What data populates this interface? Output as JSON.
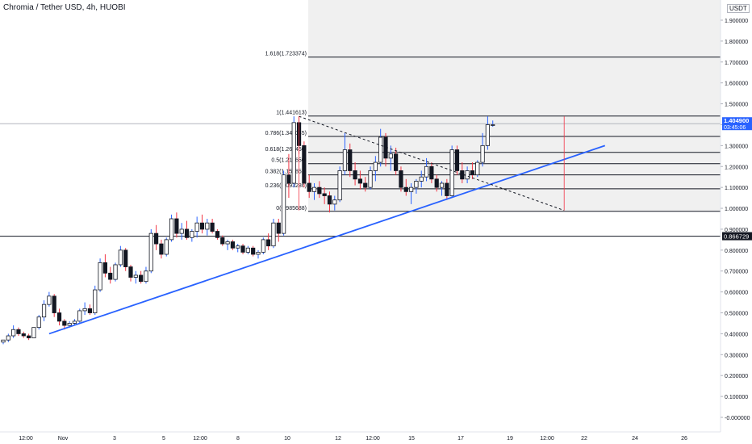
{
  "header": {
    "title": "Chromia / Tether USD, 4h, HUOBI",
    "currency": "USDT"
  },
  "price_label": {
    "value": "1.404900",
    "countdown": "03:45:06"
  },
  "level_label": "0.866729",
  "colors": {
    "up": "#ffffff",
    "down": "#131722",
    "wick_up": "#2962ff",
    "wick_down": "#f23645",
    "trendline": "#2962ff",
    "fib": "#131722",
    "price_tag_bg": "#2962ff"
  },
  "chart_data": {
    "type": "candlestick",
    "title": "Chromia / Tether USD, 4h, HUOBI",
    "y_axis_labels": [
      "-0.000000",
      "0.100000",
      "0.200000",
      "0.300000",
      "0.400000",
      "0.500000",
      "0.600000",
      "0.700000",
      "0.800000",
      "0.900000",
      "1.000000",
      "1.100000",
      "1.200000",
      "1.300000",
      "1.400000",
      "1.500000",
      "1.600000",
      "1.700000",
      "1.800000",
      "1.900000"
    ],
    "x_axis_labels": [
      "12:00",
      "Nov",
      "3",
      "5",
      "12:00",
      "8",
      "10",
      "12",
      "12:00",
      "15",
      "17",
      "19",
      "12:00",
      "22",
      "24",
      "26"
    ],
    "ylim": [
      -0.02,
      2.0
    ],
    "fib_levels": [
      {
        "label": "1.618(1.723374)",
        "value": 1.723374
      },
      {
        "label": "1(1.441613)",
        "value": 1.441613
      },
      {
        "label": "0.786(1.344045)",
        "value": 1.344045
      },
      {
        "label": "0.618(1.267450)",
        "value": 1.26745
      },
      {
        "label": "0.5(1.213650)",
        "value": 1.21365
      },
      {
        "label": "0.382(1.159851)",
        "value": 1.159851
      },
      {
        "label": "0.236(1.093286)",
        "value": 1.093286
      },
      {
        "label": "0(0.985688)",
        "value": 0.985688
      }
    ],
    "horizontal_levels": [
      {
        "value": 0.866729,
        "style": "solid"
      },
      {
        "value": 1.4049,
        "style": "faint"
      }
    ],
    "last_price": 1.4049,
    "candles": [
      [
        0.36,
        0.37,
        0.35,
        0.37
      ],
      [
        0.37,
        0.4,
        0.36,
        0.39
      ],
      [
        0.39,
        0.44,
        0.38,
        0.42
      ],
      [
        0.42,
        0.43,
        0.39,
        0.4
      ],
      [
        0.4,
        0.41,
        0.38,
        0.39
      ],
      [
        0.39,
        0.4,
        0.37,
        0.38
      ],
      [
        0.38,
        0.43,
        0.38,
        0.43
      ],
      [
        0.43,
        0.49,
        0.42,
        0.48
      ],
      [
        0.48,
        0.56,
        0.46,
        0.54
      ],
      [
        0.54,
        0.6,
        0.53,
        0.58
      ],
      [
        0.58,
        0.59,
        0.48,
        0.5
      ],
      [
        0.5,
        0.52,
        0.44,
        0.46
      ],
      [
        0.46,
        0.47,
        0.42,
        0.44
      ],
      [
        0.44,
        0.46,
        0.43,
        0.45
      ],
      [
        0.45,
        0.47,
        0.44,
        0.46
      ],
      [
        0.46,
        0.52,
        0.45,
        0.51
      ],
      [
        0.51,
        0.55,
        0.49,
        0.52
      ],
      [
        0.52,
        0.54,
        0.49,
        0.5
      ],
      [
        0.5,
        0.63,
        0.49,
        0.61
      ],
      [
        0.61,
        0.76,
        0.6,
        0.74
      ],
      [
        0.74,
        0.78,
        0.67,
        0.69
      ],
      [
        0.69,
        0.72,
        0.64,
        0.66
      ],
      [
        0.66,
        0.74,
        0.65,
        0.73
      ],
      [
        0.73,
        0.82,
        0.72,
        0.8
      ],
      [
        0.8,
        0.81,
        0.7,
        0.72
      ],
      [
        0.72,
        0.73,
        0.65,
        0.67
      ],
      [
        0.67,
        0.7,
        0.64,
        0.68
      ],
      [
        0.68,
        0.7,
        0.64,
        0.65
      ],
      [
        0.65,
        0.72,
        0.64,
        0.7
      ],
      [
        0.7,
        0.9,
        0.69,
        0.88
      ],
      [
        0.88,
        0.92,
        0.8,
        0.83
      ],
      [
        0.83,
        0.85,
        0.76,
        0.78
      ],
      [
        0.78,
        0.86,
        0.77,
        0.85
      ],
      [
        0.85,
        0.97,
        0.84,
        0.95
      ],
      [
        0.95,
        0.98,
        0.86,
        0.88
      ],
      [
        0.88,
        0.93,
        0.85,
        0.9
      ],
      [
        0.9,
        0.94,
        0.85,
        0.86
      ],
      [
        0.86,
        0.9,
        0.84,
        0.89
      ],
      [
        0.89,
        0.96,
        0.86,
        0.93
      ],
      [
        0.93,
        0.97,
        0.88,
        0.9
      ],
      [
        0.9,
        0.95,
        0.87,
        0.93
      ],
      [
        0.93,
        0.95,
        0.88,
        0.89
      ],
      [
        0.89,
        0.9,
        0.85,
        0.86
      ],
      [
        0.86,
        0.87,
        0.82,
        0.83
      ],
      [
        0.83,
        0.85,
        0.8,
        0.84
      ],
      [
        0.84,
        0.85,
        0.8,
        0.81
      ],
      [
        0.81,
        0.83,
        0.79,
        0.82
      ],
      [
        0.82,
        0.83,
        0.78,
        0.79
      ],
      [
        0.79,
        0.82,
        0.78,
        0.81
      ],
      [
        0.81,
        0.82,
        0.77,
        0.78
      ],
      [
        0.78,
        0.8,
        0.76,
        0.79
      ],
      [
        0.79,
        0.86,
        0.78,
        0.85
      ],
      [
        0.85,
        0.88,
        0.8,
        0.82
      ],
      [
        0.82,
        0.95,
        0.81,
        0.93
      ],
      [
        0.93,
        0.95,
        0.84,
        0.88
      ],
      [
        0.88,
        1.18,
        0.87,
        1.16
      ],
      [
        1.16,
        1.26,
        1.05,
        1.12
      ],
      [
        1.12,
        1.44,
        1.1,
        1.41
      ],
      [
        1.41,
        1.44,
        1.26,
        1.3
      ],
      [
        1.3,
        1.32,
        1.1,
        1.12
      ],
      [
        1.12,
        1.16,
        1.05,
        1.08
      ],
      [
        1.08,
        1.12,
        1.04,
        1.1
      ],
      [
        1.1,
        1.13,
        1.05,
        1.07
      ],
      [
        1.07,
        1.1,
        1.02,
        1.06
      ],
      [
        1.06,
        1.08,
        0.98,
        1.02
      ],
      [
        1.02,
        1.06,
        0.99,
        1.04
      ],
      [
        1.04,
        1.2,
        1.03,
        1.18
      ],
      [
        1.18,
        1.36,
        1.16,
        1.28
      ],
      [
        1.28,
        1.31,
        1.15,
        1.18
      ],
      [
        1.18,
        1.22,
        1.11,
        1.14
      ],
      [
        1.14,
        1.18,
        1.09,
        1.12
      ],
      [
        1.12,
        1.15,
        1.08,
        1.1
      ],
      [
        1.1,
        1.2,
        1.09,
        1.18
      ],
      [
        1.18,
        1.25,
        1.13,
        1.22
      ],
      [
        1.22,
        1.38,
        1.2,
        1.34
      ],
      [
        1.34,
        1.36,
        1.2,
        1.24
      ],
      [
        1.24,
        1.3,
        1.18,
        1.26
      ],
      [
        1.26,
        1.29,
        1.16,
        1.18
      ],
      [
        1.18,
        1.2,
        1.08,
        1.1
      ],
      [
        1.1,
        1.14,
        1.06,
        1.08
      ],
      [
        1.08,
        1.12,
        1.02,
        1.1
      ],
      [
        1.1,
        1.14,
        1.07,
        1.13
      ],
      [
        1.13,
        1.18,
        1.1,
        1.15
      ],
      [
        1.15,
        1.24,
        1.13,
        1.2
      ],
      [
        1.2,
        1.22,
        1.12,
        1.14
      ],
      [
        1.14,
        1.16,
        1.08,
        1.1
      ],
      [
        1.1,
        1.13,
        1.06,
        1.12
      ],
      [
        1.12,
        1.14,
        1.04,
        1.06
      ],
      [
        1.06,
        1.3,
        1.05,
        1.28
      ],
      [
        1.28,
        1.3,
        1.16,
        1.18
      ],
      [
        1.18,
        1.22,
        1.12,
        1.14
      ],
      [
        1.14,
        1.2,
        1.12,
        1.18
      ],
      [
        1.18,
        1.22,
        1.14,
        1.16
      ],
      [
        1.16,
        1.23,
        1.15,
        1.22
      ],
      [
        1.22,
        1.36,
        1.2,
        1.3
      ],
      [
        1.3,
        1.44,
        1.28,
        1.4
      ],
      [
        1.4,
        1.42,
        1.39,
        1.4
      ]
    ],
    "trendline_up": {
      "x1_index": 9,
      "y1": 0.4,
      "x2_index": 118,
      "y2": 1.3
    },
    "trendline_down": {
      "x1_index": 58,
      "y1": 1.44,
      "x2_index": 110,
      "y2": 0.99
    }
  }
}
